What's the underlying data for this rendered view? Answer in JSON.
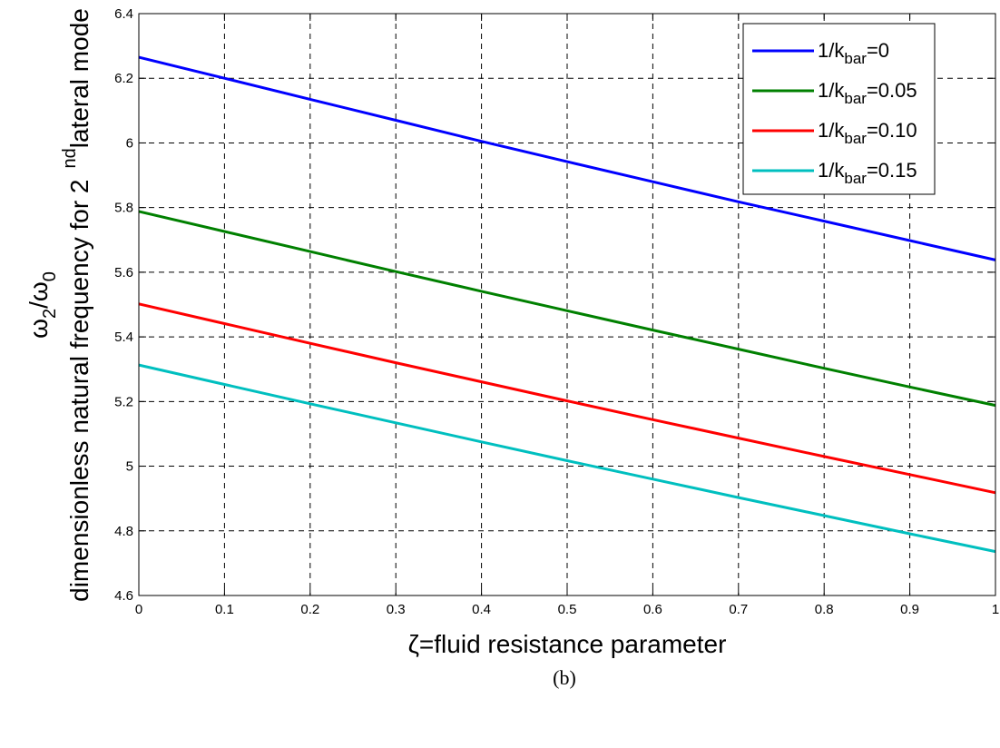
{
  "chart_data": {
    "type": "line",
    "xlabel_symbol": "ζ",
    "xlabel_text": "=fluid resistance parameter",
    "ylabel": {
      "omega": "ω",
      "sub2": "2",
      "slash": "/",
      "sub0": "0",
      "text": "dimensionless natural frequency for 2",
      "sup": "nd",
      "tail": "lateral mode"
    },
    "caption": "(b)",
    "xlim": [
      0,
      1
    ],
    "ylim": [
      4.6,
      6.4
    ],
    "xticks": [
      "0",
      "0.1",
      "0.2",
      "0.3",
      "0.4",
      "0.5",
      "0.6",
      "0.7",
      "0.8",
      "0.9",
      "1"
    ],
    "yticks": [
      "4.6",
      "4.8",
      "5",
      "5.2",
      "5.4",
      "5.6",
      "5.8",
      "6",
      "6.2",
      "6.4"
    ],
    "grid": true,
    "legend_position": "top-right",
    "x": [
      0,
      0.1,
      0.2,
      0.3,
      0.4,
      0.5,
      0.6,
      0.7,
      0.8,
      0.9,
      1.0
    ],
    "series": [
      {
        "name": "1/k_bar=0",
        "legend": {
          "prefix": "1/k",
          "sub": "bar",
          "suffix": "=0"
        },
        "color": "#0000ff",
        "values": [
          6.265,
          6.2,
          6.135,
          6.07,
          6.005,
          5.942,
          5.88,
          5.818,
          5.758,
          5.698,
          5.638
        ]
      },
      {
        "name": "1/k_bar=0.05",
        "legend": {
          "prefix": "1/k",
          "sub": "bar",
          "suffix": "=0.05"
        },
        "color": "#008000",
        "values": [
          5.788,
          5.726,
          5.664,
          5.602,
          5.541,
          5.481,
          5.421,
          5.362,
          5.303,
          5.245,
          5.188
        ]
      },
      {
        "name": "1/k_bar=0.10",
        "legend": {
          "prefix": "1/k",
          "sub": "bar",
          "suffix": "=0.10"
        },
        "color": "#ff0000",
        "values": [
          5.502,
          5.441,
          5.38,
          5.32,
          5.261,
          5.202,
          5.144,
          5.087,
          5.03,
          4.974,
          4.918
        ]
      },
      {
        "name": "1/k_bar=0.15",
        "legend": {
          "prefix": "1/k",
          "sub": "bar",
          "suffix": "=0.15"
        },
        "color": "#00bfbf",
        "values": [
          5.313,
          5.253,
          5.193,
          5.134,
          5.075,
          5.017,
          4.96,
          4.903,
          4.847,
          4.791,
          4.736
        ]
      }
    ]
  }
}
